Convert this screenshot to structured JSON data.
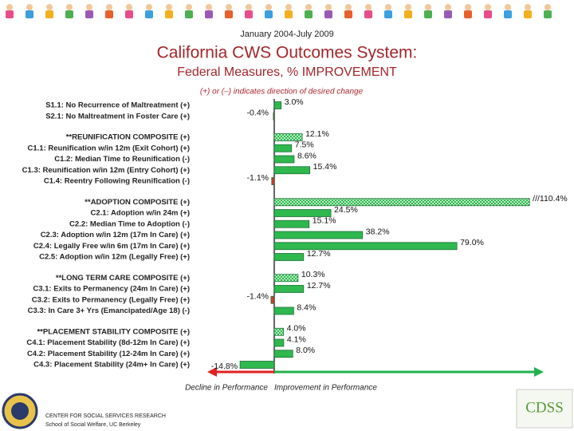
{
  "header": {
    "date_range": "January 2004-July 2009",
    "title": "California CWS Outcomes System:",
    "subtitle": "Federal Measures, % IMPROVEMENT",
    "note": "(+) or (–) indicates direction of desired change"
  },
  "chart_data": {
    "type": "bar",
    "orientation": "horizontal",
    "categories": [
      "S1.1: No Recurrence of Maltreatment (+)",
      "S2.1: No Maltreatment in Foster Care (+)",
      "**REUNIFICATION COMPOSITE (+)",
      "C1.1: Reunification w/in 12m (Exit Cohort) (+)",
      "C1.2: Median Time to Reunification (-)",
      "C1.3: Reunification w/in 12m (Entry Cohort) (+)",
      "C1.4: Reentry Following Reunification (-)",
      "**ADOPTION COMPOSITE (+)",
      "C2.1: Adoption w/in 24m (+)",
      "C2.2: Median Time to Adoption (-)",
      "C2.3: Adoption w/in 12m (17m In Care) (+)",
      "C2.4: Legally Free w/in 6m (17m In Care) (+)",
      "C2.5: Adoption w/in 12m (Legally Free) (+)",
      "**LONG TERM CARE COMPOSITE (+)",
      "C3.1: Exits to Permanency (24m In Care) (+)",
      "C3.2: Exits to Permanency (Legally Free) (+)",
      "C3.3: In Care 3+ Yrs (Emancipated/Age 18) (-)",
      "**PLACEMENT STABILITY COMPOSITE (+)",
      "C4.1: Placement Stability (8d-12m In Care) (+)",
      "C4.2: Placement Stability (12-24m In Care) (+)",
      "C4.3: Placement Stability (24m+ In Care) (+)"
    ],
    "values": [
      3.0,
      -0.4,
      12.1,
      7.5,
      8.6,
      15.4,
      -1.1,
      110.4,
      24.5,
      15.1,
      38.2,
      79.0,
      12.7,
      10.3,
      12.7,
      -1.4,
      8.4,
      4.0,
      4.1,
      8.0,
      -14.8
    ],
    "value_labels": [
      "3.0%",
      "-0.4%",
      "12.1%",
      "7.5%",
      "8.6%",
      "15.4%",
      "-1.1%",
      "///110.4%",
      "24.5%",
      "15.1%",
      "38.2%",
      "79.0%",
      "12.7%",
      "10.3%",
      "12.7%",
      "-1.4%",
      "8.4%",
      "4.0%",
      "4.1%",
      "8.0%",
      "-14.8%"
    ],
    "color": "#2eb84e",
    "negative_color": "#d9342b",
    "left_label": "Decline in Performance",
    "right_label": "Improvement in Performance"
  },
  "footer": {
    "org": "CENTER FOR SOCIAL SERVICES RESEARCH",
    "school": "School of Social Welfare, UC Berkeley",
    "logo": "CDSS"
  }
}
